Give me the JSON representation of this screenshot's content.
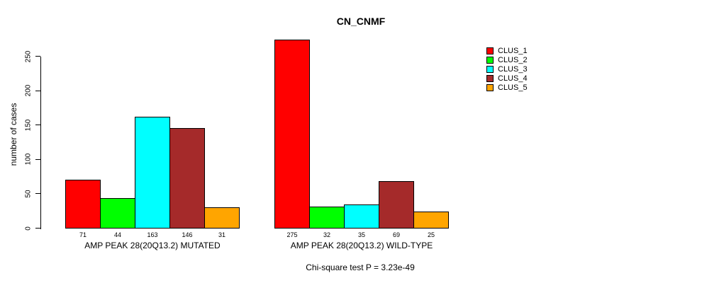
{
  "chart_data": {
    "type": "bar",
    "title": "CN_CNMF",
    "ylabel": "number of cases",
    "ylim": [
      0,
      250
    ],
    "yticks": [
      0,
      50,
      100,
      150,
      200,
      250
    ],
    "grid": false,
    "legend_position": "right-outside",
    "clusters": [
      {
        "label": "CLUS_1",
        "color": "#FF0000"
      },
      {
        "label": "CLUS_2",
        "color": "#00FF00"
      },
      {
        "label": "CLUS_3",
        "color": "#00FFFF"
      },
      {
        "label": "CLUS_4",
        "color": "#A52A2A"
      },
      {
        "label": "CLUS_5",
        "color": "#FFA500"
      }
    ],
    "groups": [
      {
        "label": "AMP PEAK 28(20Q13.2) MUTATED",
        "values": [
          71,
          44,
          163,
          146,
          31
        ]
      },
      {
        "label": "AMP PEAK 28(20Q13.2) WILD-TYPE",
        "values": [
          275,
          32,
          35,
          69,
          25
        ]
      }
    ],
    "bar_value_labels_shown": true,
    "footnote": "Chi-square test P = 3.23e-49"
  }
}
